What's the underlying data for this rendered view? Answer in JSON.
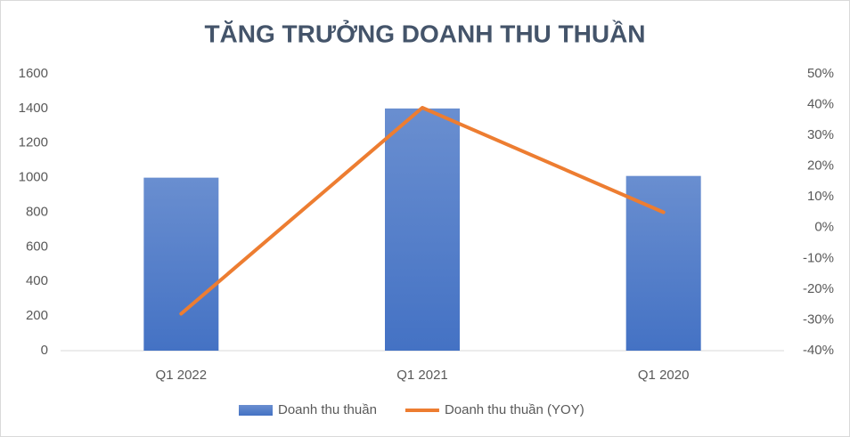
{
  "chart_data": {
    "type": "combo",
    "title": "TĂNG TRƯỞNG DOANH THU THUẦN",
    "categories": [
      "Q1 2022",
      "Q1 2021",
      "Q1 2020"
    ],
    "series": [
      {
        "name": "Doanh thu thuần",
        "type": "bar",
        "color": "#4472c4",
        "values": [
          1000,
          1400,
          1010
        ]
      },
      {
        "name": "Doanh thu thuần (YOY)",
        "type": "line",
        "axis": "y2",
        "color": "#ed7d31",
        "values": [
          -28,
          39,
          5
        ]
      }
    ],
    "ylim": [
      0,
      1600
    ],
    "yticks": [
      0,
      200,
      400,
      600,
      800,
      1000,
      1200,
      1400,
      1600
    ],
    "y2lim": [
      -40,
      50
    ],
    "y2ticks": [
      {
        "value": -40,
        "label": "-40%"
      },
      {
        "value": -30,
        "label": "-30%"
      },
      {
        "value": -20,
        "label": "-20%"
      },
      {
        "value": -10,
        "label": "-10%"
      },
      {
        "value": 0,
        "label": "0%"
      },
      {
        "value": 10,
        "label": "10%"
      },
      {
        "value": 20,
        "label": "20%"
      },
      {
        "value": 30,
        "label": "30%"
      },
      {
        "value": 40,
        "label": "40%"
      },
      {
        "value": 50,
        "label": "50%"
      }
    ],
    "legend": "bottom",
    "grid": false
  }
}
